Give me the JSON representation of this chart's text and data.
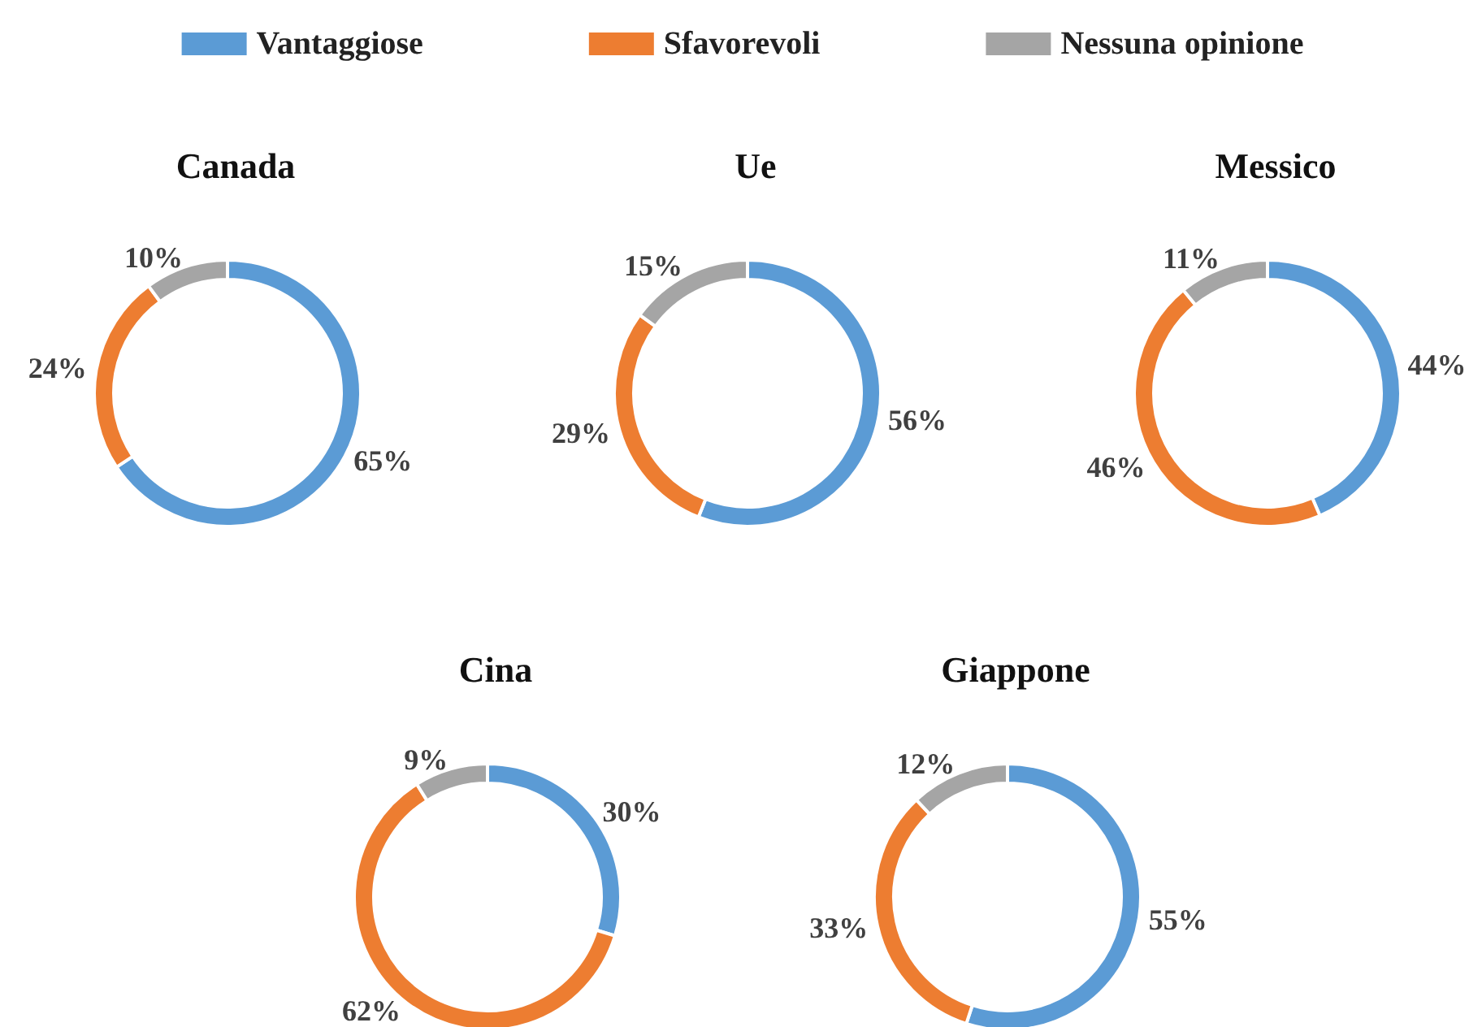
{
  "chart_data": [
    {
      "type": "donut",
      "title": "Canada",
      "legend": "top",
      "categories": [
        "Vantaggiose",
        "Sfavorevoli",
        "Nessuna opinione"
      ],
      "values": [
        65,
        24,
        10
      ],
      "value_labels": [
        "65%",
        "24%",
        "10%"
      ],
      "colors": [
        "#5b9bd5",
        "#ed7d31",
        "#a5a5a5"
      ]
    },
    {
      "type": "donut",
      "title": "Ue",
      "categories": [
        null,
        null,
        null
      ],
      "values": [
        56,
        29,
        15
      ],
      "value_labels": [
        "56%",
        "29%",
        "15%"
      ],
      "colors": [
        "#5b9bd5",
        "#ed7d31",
        "#a5a5a5"
      ]
    },
    {
      "type": "donut",
      "title": "Messico",
      "categories": [
        null,
        null,
        null
      ],
      "values": [
        44,
        46,
        11
      ],
      "value_labels": [
        "44%",
        "46%",
        "11%"
      ],
      "colors": [
        "#5b9bd5",
        "#ed7d31",
        "#a5a5a5"
      ]
    },
    {
      "type": "donut",
      "title": "Cina",
      "categories": [
        null,
        null,
        null
      ],
      "values": [
        30,
        62,
        9
      ],
      "value_labels": [
        "30%",
        "62%",
        "9%"
      ],
      "colors": [
        "#5b9bd5",
        "#ed7d31",
        "#a5a5a5"
      ]
    },
    {
      "type": "donut",
      "title": "Giappone",
      "categories": [
        null,
        null,
        null
      ],
      "values": [
        55,
        33,
        12
      ],
      "value_labels": [
        "55%",
        "33%",
        "12%"
      ],
      "colors": [
        "#5b9bd5",
        "#ed7d31",
        "#a5a5a5"
      ]
    }
  ]
}
